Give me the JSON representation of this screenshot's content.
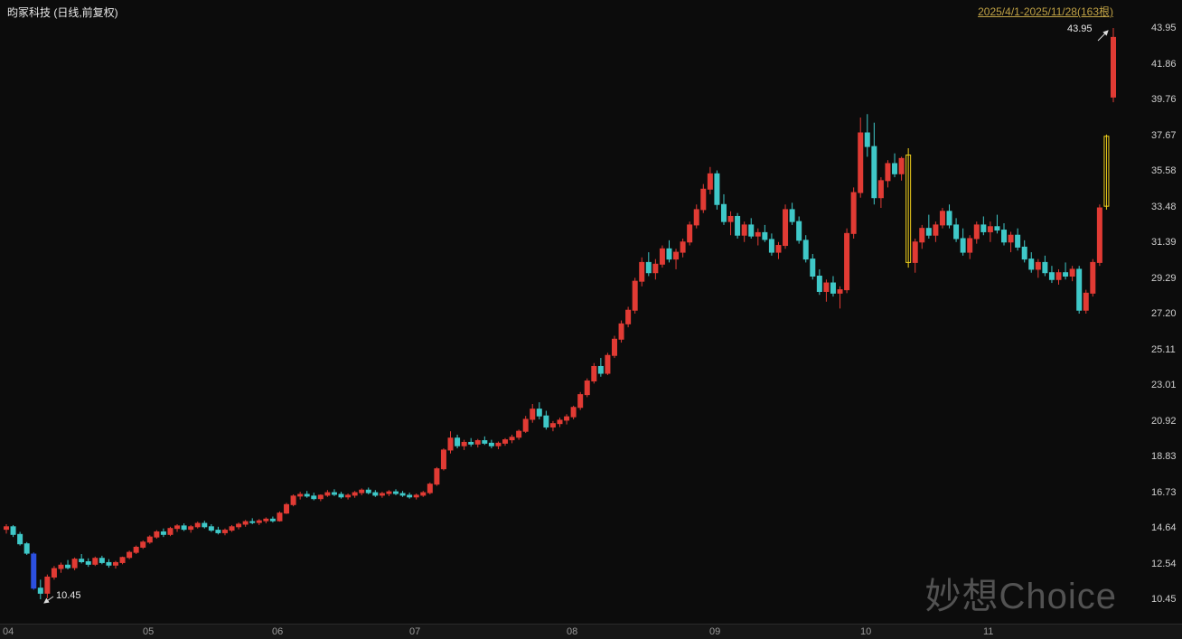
{
  "header": {
    "title": "昀冢科技 (日线,前复权)",
    "date_range": "2025/4/1-2025/11/28(163根)"
  },
  "annotations": {
    "high_label": "43.95",
    "low_label": "10.45"
  },
  "watermark": {
    "text": "妙想Choice"
  },
  "colors": {
    "background": "#0c0c0c",
    "up": "#e13b34",
    "down": "#3fc8c8",
    "special_blue": "#2c50e0",
    "highlight_yellow": "#f0d01c",
    "date_range_text": "#bfa145",
    "axis_text": "#9a9a9a",
    "y_axis_text": "#cfcfcf",
    "annotation_text": "#e8e8e8"
  },
  "chart_data": {
    "type": "candlestick",
    "title": "昀冢科技 日线 前复权",
    "bar_count": 163,
    "y_range": [
      10.45,
      43.95
    ],
    "y_axis_labels": [
      "43.95",
      "41.86",
      "39.76",
      "37.67",
      "35.58",
      "33.48",
      "31.39",
      "29.29",
      "27.20",
      "25.11",
      "23.01",
      "20.92",
      "18.83",
      "16.73",
      "14.64",
      "12.54",
      "10.45"
    ],
    "x_axis_ticks": [
      {
        "label": "04",
        "index": 0
      },
      {
        "label": "05",
        "index": 21
      },
      {
        "label": "06",
        "index": 40
      },
      {
        "label": "07",
        "index": 60
      },
      {
        "label": "08",
        "index": 83
      },
      {
        "label": "09",
        "index": 104
      },
      {
        "label": "10",
        "index": 126
      },
      {
        "label": "11",
        "index": 144
      }
    ],
    "high_annotation": {
      "text": "43.95",
      "price": 43.95,
      "index": 162
    },
    "low_annotation": {
      "text": "10.45",
      "price": 10.45,
      "index": 5
    },
    "color_overrides": {
      "4": "blue",
      "132": "yellow",
      "161": "yellow"
    },
    "candles": [
      [
        14.55,
        14.85,
        14.3,
        14.7
      ],
      [
        14.7,
        14.8,
        14.1,
        14.25
      ],
      [
        14.25,
        14.4,
        13.6,
        13.7
      ],
      [
        13.7,
        13.8,
        13.05,
        13.15
      ],
      [
        13.1,
        13.2,
        11.0,
        11.1
      ],
      [
        11.1,
        11.6,
        10.45,
        10.8
      ],
      [
        10.8,
        11.9,
        10.5,
        11.75
      ],
      [
        11.75,
        12.4,
        11.6,
        12.25
      ],
      [
        12.25,
        12.6,
        12.0,
        12.45
      ],
      [
        12.45,
        12.75,
        12.2,
        12.3
      ],
      [
        12.3,
        12.9,
        12.15,
        12.8
      ],
      [
        12.8,
        13.1,
        12.55,
        12.65
      ],
      [
        12.65,
        12.85,
        12.35,
        12.5
      ],
      [
        12.5,
        12.95,
        12.4,
        12.85
      ],
      [
        12.85,
        13.0,
        12.5,
        12.6
      ],
      [
        12.6,
        12.8,
        12.3,
        12.45
      ],
      [
        12.45,
        12.7,
        12.25,
        12.6
      ],
      [
        12.6,
        12.95,
        12.5,
        12.9
      ],
      [
        12.9,
        13.3,
        12.8,
        13.2
      ],
      [
        13.2,
        13.6,
        13.1,
        13.5
      ],
      [
        13.5,
        13.9,
        13.4,
        13.8
      ],
      [
        13.8,
        14.2,
        13.7,
        14.1
      ],
      [
        14.1,
        14.5,
        14.0,
        14.4
      ],
      [
        14.4,
        14.6,
        14.1,
        14.25
      ],
      [
        14.25,
        14.7,
        14.15,
        14.6
      ],
      [
        14.6,
        14.85,
        14.4,
        14.75
      ],
      [
        14.75,
        14.9,
        14.45,
        14.55
      ],
      [
        14.55,
        14.8,
        14.35,
        14.7
      ],
      [
        14.7,
        15.0,
        14.6,
        14.9
      ],
      [
        14.9,
        15.05,
        14.6,
        14.7
      ],
      [
        14.7,
        14.85,
        14.4,
        14.5
      ],
      [
        14.5,
        14.7,
        14.25,
        14.35
      ],
      [
        14.35,
        14.6,
        14.2,
        14.5
      ],
      [
        14.5,
        14.8,
        14.4,
        14.7
      ],
      [
        14.7,
        14.95,
        14.55,
        14.85
      ],
      [
        14.85,
        15.1,
        14.7,
        15.0
      ],
      [
        15.0,
        15.2,
        14.85,
        14.95
      ],
      [
        14.95,
        15.15,
        14.8,
        15.05
      ],
      [
        15.05,
        15.25,
        14.9,
        15.15
      ],
      [
        15.15,
        15.3,
        14.95,
        15.05
      ],
      [
        15.05,
        15.6,
        15.0,
        15.5
      ],
      [
        15.5,
        16.1,
        15.45,
        16.0
      ],
      [
        16.0,
        16.6,
        15.9,
        16.5
      ],
      [
        16.5,
        16.75,
        16.3,
        16.6
      ],
      [
        16.6,
        16.8,
        16.4,
        16.5
      ],
      [
        16.5,
        16.7,
        16.25,
        16.35
      ],
      [
        16.35,
        16.6,
        16.2,
        16.55
      ],
      [
        16.55,
        16.85,
        16.45,
        16.7
      ],
      [
        16.7,
        16.9,
        16.5,
        16.6
      ],
      [
        16.6,
        16.75,
        16.35,
        16.45
      ],
      [
        16.45,
        16.65,
        16.3,
        16.55
      ],
      [
        16.55,
        16.8,
        16.4,
        16.7
      ],
      [
        16.7,
        16.95,
        16.55,
        16.85
      ],
      [
        16.85,
        17.0,
        16.6,
        16.7
      ],
      [
        16.7,
        16.85,
        16.45,
        16.55
      ],
      [
        16.55,
        16.75,
        16.4,
        16.65
      ],
      [
        16.65,
        16.85,
        16.5,
        16.75
      ],
      [
        16.75,
        16.9,
        16.55,
        16.65
      ],
      [
        16.65,
        16.8,
        16.45,
        16.55
      ],
      [
        16.55,
        16.7,
        16.35,
        16.45
      ],
      [
        16.45,
        16.65,
        16.3,
        16.55
      ],
      [
        16.55,
        16.8,
        16.45,
        16.7
      ],
      [
        16.7,
        17.3,
        16.6,
        17.2
      ],
      [
        17.2,
        18.2,
        17.1,
        18.1
      ],
      [
        18.1,
        19.3,
        18.0,
        19.2
      ],
      [
        19.2,
        20.3,
        19.0,
        19.9
      ],
      [
        19.9,
        20.1,
        19.3,
        19.45
      ],
      [
        19.45,
        19.8,
        19.2,
        19.65
      ],
      [
        19.65,
        19.9,
        19.4,
        19.55
      ],
      [
        19.55,
        19.85,
        19.35,
        19.75
      ],
      [
        19.75,
        20.0,
        19.5,
        19.6
      ],
      [
        19.6,
        19.8,
        19.3,
        19.45
      ],
      [
        19.45,
        19.7,
        19.25,
        19.6
      ],
      [
        19.6,
        19.9,
        19.45,
        19.8
      ],
      [
        19.8,
        20.1,
        19.6,
        19.95
      ],
      [
        19.95,
        20.4,
        19.8,
        20.3
      ],
      [
        20.3,
        21.2,
        20.2,
        21.0
      ],
      [
        21.0,
        21.9,
        20.8,
        21.6
      ],
      [
        21.6,
        22.0,
        21.0,
        21.2
      ],
      [
        21.2,
        21.5,
        20.4,
        20.55
      ],
      [
        20.55,
        20.9,
        20.3,
        20.75
      ],
      [
        20.75,
        21.1,
        20.55,
        20.95
      ],
      [
        20.95,
        21.3,
        20.7,
        21.15
      ],
      [
        21.15,
        21.8,
        21.0,
        21.7
      ],
      [
        21.7,
        22.6,
        21.55,
        22.45
      ],
      [
        22.45,
        23.4,
        22.3,
        23.25
      ],
      [
        23.25,
        24.3,
        23.1,
        24.1
      ],
      [
        24.1,
        24.6,
        23.5,
        23.7
      ],
      [
        23.7,
        24.9,
        23.6,
        24.75
      ],
      [
        24.75,
        25.9,
        24.6,
        25.7
      ],
      [
        25.7,
        26.8,
        25.5,
        26.6
      ],
      [
        26.6,
        27.6,
        26.4,
        27.4
      ],
      [
        27.4,
        29.3,
        27.2,
        29.1
      ],
      [
        29.1,
        30.5,
        28.8,
        30.2
      ],
      [
        30.2,
        30.8,
        29.4,
        29.6
      ],
      [
        29.6,
        30.4,
        29.2,
        30.1
      ],
      [
        30.1,
        31.2,
        29.9,
        31.0
      ],
      [
        31.0,
        31.5,
        30.2,
        30.4
      ],
      [
        30.4,
        31.0,
        29.8,
        30.8
      ],
      [
        30.8,
        31.6,
        30.5,
        31.4
      ],
      [
        31.4,
        32.6,
        31.2,
        32.4
      ],
      [
        32.4,
        33.6,
        32.2,
        33.3
      ],
      [
        33.3,
        34.8,
        33.1,
        34.5
      ],
      [
        34.5,
        35.8,
        34.2,
        35.4
      ],
      [
        35.4,
        35.6,
        33.3,
        33.6
      ],
      [
        33.6,
        34.2,
        32.4,
        32.6
      ],
      [
        32.6,
        33.2,
        31.8,
        32.9
      ],
      [
        32.9,
        33.1,
        31.6,
        31.8
      ],
      [
        31.8,
        32.6,
        31.4,
        32.4
      ],
      [
        32.4,
        32.8,
        31.6,
        31.75
      ],
      [
        31.75,
        32.2,
        31.2,
        31.95
      ],
      [
        31.95,
        32.4,
        31.4,
        31.55
      ],
      [
        31.55,
        31.9,
        30.6,
        30.8
      ],
      [
        30.8,
        31.4,
        30.4,
        31.2
      ],
      [
        31.2,
        33.6,
        31.0,
        33.3
      ],
      [
        33.3,
        33.7,
        32.4,
        32.6
      ],
      [
        32.6,
        32.9,
        31.3,
        31.5
      ],
      [
        31.5,
        31.8,
        30.2,
        30.4
      ],
      [
        30.4,
        30.7,
        29.2,
        29.4
      ],
      [
        29.4,
        29.8,
        28.3,
        28.5
      ],
      [
        28.5,
        29.2,
        27.9,
        29.0
      ],
      [
        29.0,
        29.4,
        28.2,
        28.4
      ],
      [
        28.4,
        28.8,
        27.5,
        28.6
      ],
      [
        28.6,
        32.2,
        28.4,
        31.9
      ],
      [
        31.9,
        34.6,
        31.6,
        34.3
      ],
      [
        34.3,
        38.7,
        34.0,
        37.8
      ],
      [
        37.8,
        38.9,
        36.4,
        37.0
      ],
      [
        37.0,
        38.4,
        33.6,
        34.0
      ],
      [
        34.0,
        35.2,
        33.4,
        35.0
      ],
      [
        35.0,
        36.2,
        34.6,
        36.0
      ],
      [
        36.0,
        36.6,
        35.2,
        35.4
      ],
      [
        35.4,
        36.4,
        35.0,
        36.3
      ],
      [
        36.5,
        36.9,
        29.9,
        30.2
      ],
      [
        30.2,
        31.6,
        29.6,
        31.4
      ],
      [
        31.4,
        32.4,
        31.0,
        32.2
      ],
      [
        32.2,
        33.0,
        31.6,
        31.8
      ],
      [
        31.8,
        32.6,
        31.4,
        32.4
      ],
      [
        32.4,
        33.4,
        32.2,
        33.2
      ],
      [
        33.2,
        33.6,
        32.2,
        32.4
      ],
      [
        32.4,
        32.8,
        31.4,
        31.6
      ],
      [
        31.6,
        32.2,
        30.6,
        30.8
      ],
      [
        30.8,
        31.8,
        30.4,
        31.6
      ],
      [
        31.6,
        32.6,
        31.3,
        32.4
      ],
      [
        32.4,
        32.9,
        31.8,
        32.0
      ],
      [
        32.0,
        32.6,
        31.4,
        32.3
      ],
      [
        32.3,
        33.0,
        31.9,
        32.1
      ],
      [
        32.1,
        32.5,
        31.2,
        31.4
      ],
      [
        31.4,
        32.0,
        30.8,
        31.8
      ],
      [
        31.8,
        32.2,
        30.9,
        31.1
      ],
      [
        31.1,
        31.5,
        30.2,
        30.4
      ],
      [
        30.4,
        30.8,
        29.6,
        29.8
      ],
      [
        29.8,
        30.4,
        29.3,
        30.2
      ],
      [
        30.2,
        30.6,
        29.4,
        29.6
      ],
      [
        29.6,
        30.0,
        29.0,
        29.2
      ],
      [
        29.2,
        29.8,
        28.9,
        29.6
      ],
      [
        29.6,
        30.2,
        29.2,
        29.4
      ],
      [
        29.4,
        30.0,
        29.1,
        29.8
      ],
      [
        29.8,
        30.0,
        27.2,
        27.4
      ],
      [
        27.4,
        28.6,
        27.2,
        28.4
      ],
      [
        28.4,
        30.4,
        28.2,
        30.2
      ],
      [
        30.2,
        33.6,
        30.0,
        33.4
      ],
      [
        33.5,
        37.7,
        33.3,
        37.6
      ],
      [
        39.9,
        43.95,
        39.6,
        43.4
      ]
    ]
  }
}
